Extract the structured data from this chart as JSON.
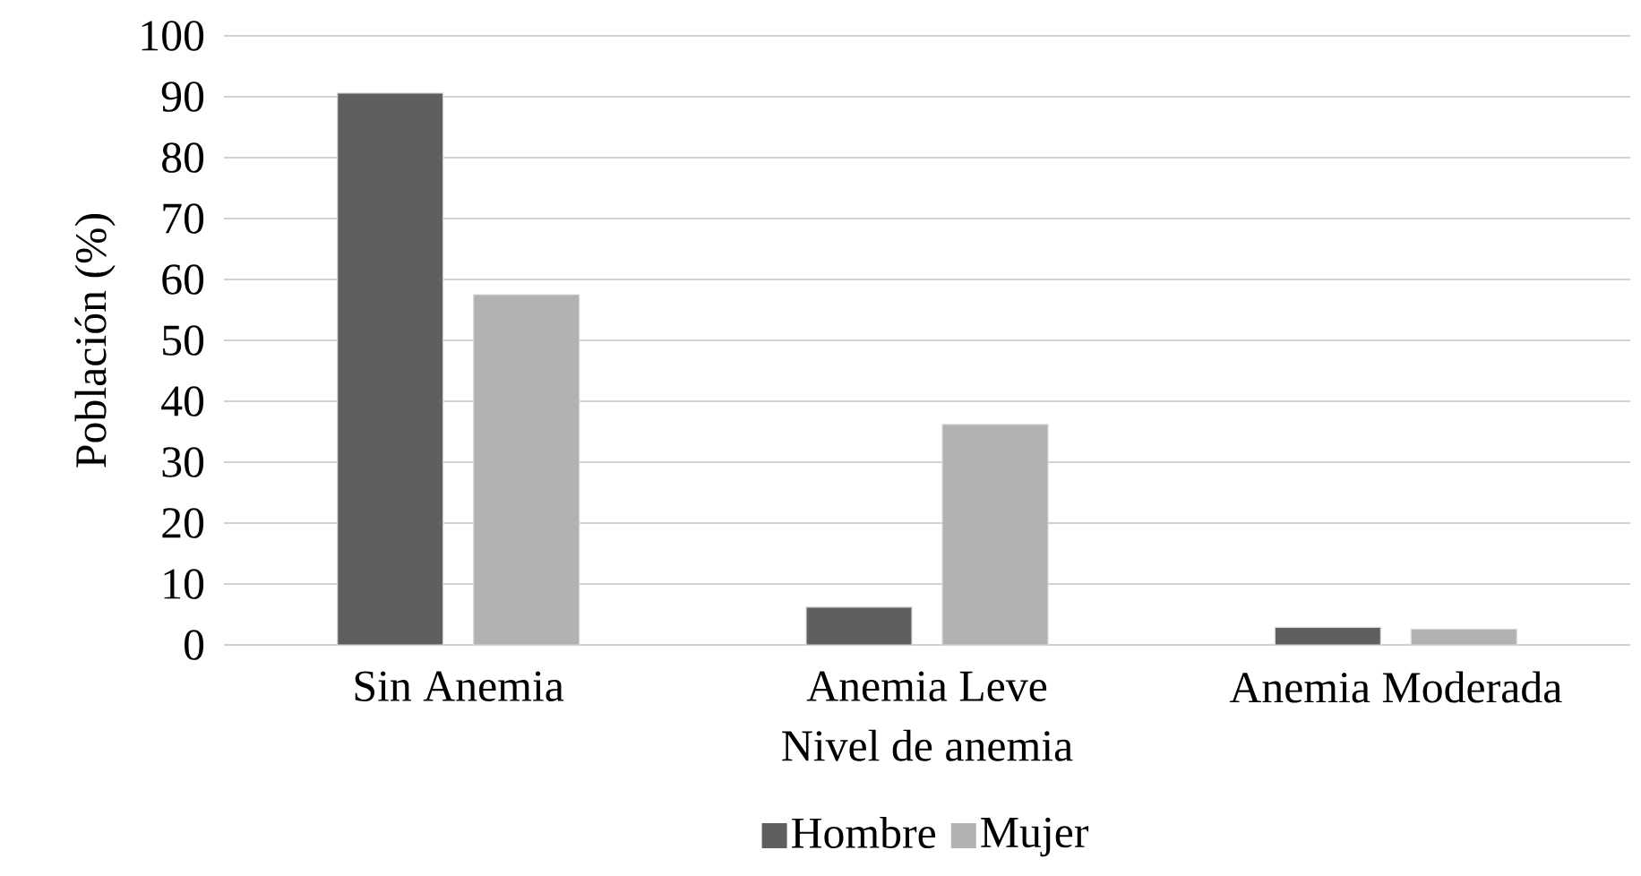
{
  "chart_data": {
    "type": "bar",
    "xlabel": "Nivel de anemia",
    "ylabel": "Población (%)",
    "categories": [
      "Sin Anemia",
      "Anemia Leve",
      "Anemia Moderada"
    ],
    "series": [
      {
        "name": "Hombre",
        "color": "#5f5f5f",
        "values": [
          90.6,
          6.2,
          2.9
        ]
      },
      {
        "name": "Mujer",
        "color": "#b2b2b2",
        "values": [
          57.5,
          36.2,
          2.6
        ]
      }
    ],
    "ylim": [
      0,
      100
    ],
    "yticks": [
      0,
      10,
      20,
      30,
      40,
      50,
      60,
      70,
      80,
      90,
      100
    ],
    "grid": "y",
    "legend": "bottom"
  }
}
